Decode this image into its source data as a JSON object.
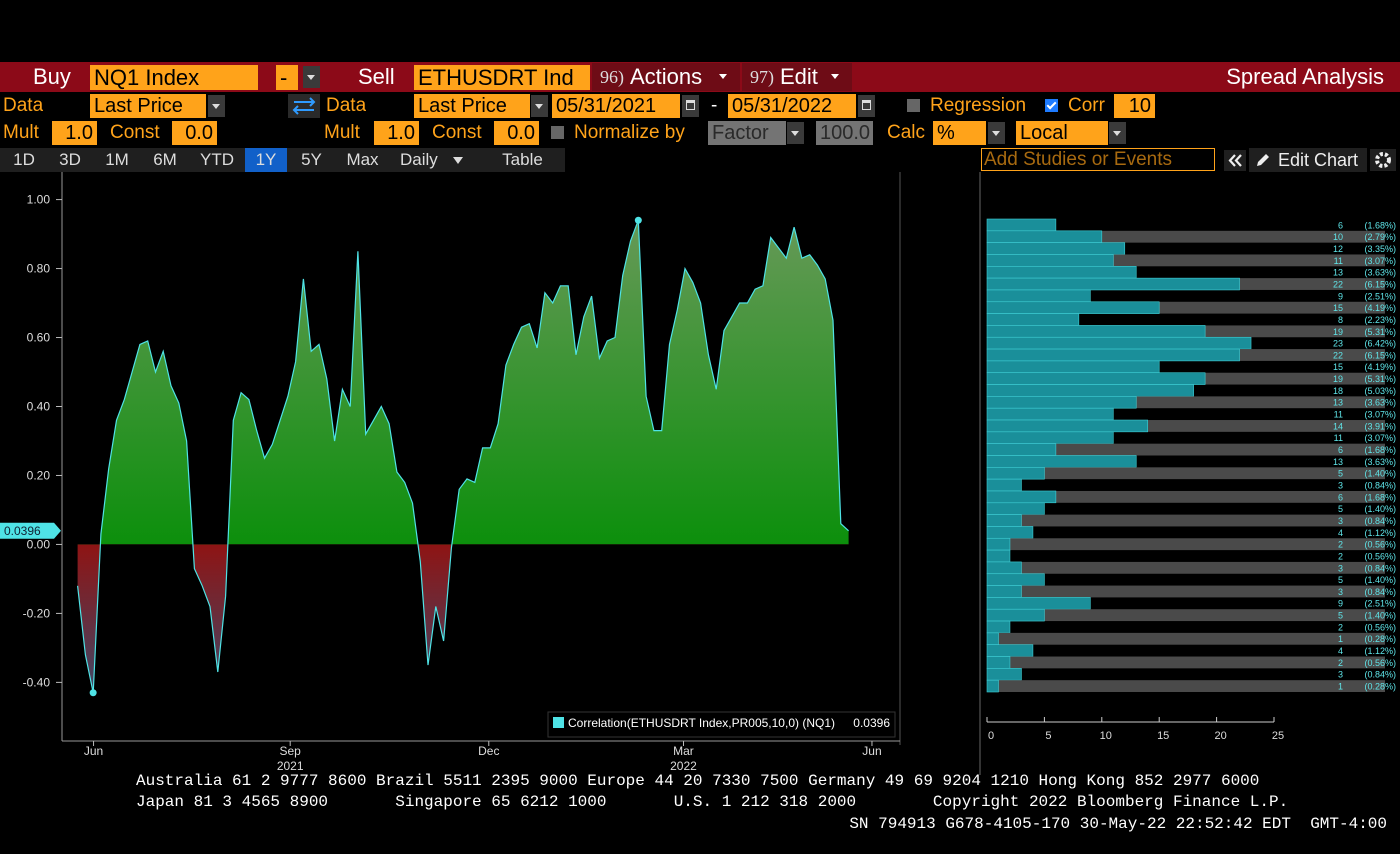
{
  "toolbar": {
    "buy_label": "Buy",
    "buy_security": "NQ1 Index",
    "buy_sign": "-",
    "sell_label": "Sell",
    "sell_security": "ETHUSDRT Ind",
    "actions_code": "96)",
    "actions": "Actions",
    "edit_code": "97)",
    "edit": "Edit",
    "function_title": "Spread Analysis"
  },
  "settings": {
    "data_label_1": "Data",
    "data_field_1": "Last Price",
    "data_label_2": "Data",
    "data_field_2": "Last Price",
    "start_date": "05/31/2021",
    "date_separator": "-",
    "end_date": "05/31/2022",
    "regression": "Regression",
    "corr": "Corr",
    "corr_window": "10",
    "mult_label_1": "Mult",
    "mult_1": "1.0",
    "const_label_1": "Const",
    "const_1": "0.0",
    "mult_label_2": "Mult",
    "mult_2": "1.0",
    "const_label_2": "Const",
    "const_2": "0.0",
    "normalize_label": "Normalize by",
    "normalize_method": "Factor",
    "normalize_value": "100.0",
    "calc_label": "Calc",
    "calc": "%",
    "currency": "Local"
  },
  "tabs": {
    "periods": [
      "1D",
      "3D",
      "1M",
      "6M",
      "YTD",
      "1Y",
      "5Y",
      "Max"
    ],
    "active": "1Y",
    "frequency": "Daily",
    "table": "Table",
    "studies_placeholder": "Add Studies or Events",
    "edit_chart": "Edit Chart"
  },
  "chart_data": [
    {
      "type": "area",
      "series": [
        {
          "name": "Correlation(ETHUSDRT Index,PR005,10,0) (NQ1)",
          "color": "#4fe3e6",
          "values": [
            -0.12,
            -0.32,
            -0.43,
            0.03,
            0.22,
            0.36,
            0.42,
            0.5,
            0.58,
            0.59,
            0.5,
            0.56,
            0.46,
            0.41,
            0.3,
            -0.07,
            -0.12,
            -0.18,
            -0.37,
            -0.15,
            0.36,
            0.44,
            0.42,
            0.33,
            0.25,
            0.29,
            0.36,
            0.43,
            0.53,
            0.77,
            0.56,
            0.58,
            0.48,
            0.3,
            0.45,
            0.4,
            0.85,
            0.32,
            0.36,
            0.4,
            0.35,
            0.21,
            0.18,
            0.12,
            -0.05,
            -0.35,
            -0.18,
            -0.28,
            -0.01,
            0.16,
            0.19,
            0.18,
            0.28,
            0.28,
            0.35,
            0.52,
            0.58,
            0.63,
            0.64,
            0.57,
            0.73,
            0.7,
            0.75,
            0.75,
            0.55,
            0.66,
            0.72,
            0.54,
            0.59,
            0.6,
            0.78,
            0.88,
            0.94,
            0.43,
            0.33,
            0.33,
            0.58,
            0.68,
            0.8,
            0.76,
            0.7,
            0.55,
            0.45,
            0.62,
            0.66,
            0.7,
            0.7,
            0.74,
            0.75,
            0.89,
            0.86,
            0.83,
            0.92,
            0.83,
            0.84,
            0.81,
            0.77,
            0.65,
            0.06,
            0.0396
          ]
        }
      ],
      "positive_color": "#0c8f0c",
      "negative_color": "#8e1414",
      "ylim": [
        -0.57,
        1.08
      ],
      "yticks": [
        {
          "value": -0.4,
          "label": "-0.40"
        },
        {
          "value": -0.2,
          "label": "-0.20"
        },
        {
          "value": 0,
          "label": "0.00"
        },
        {
          "value": 0.2,
          "label": "0.20"
        },
        {
          "value": 0.4,
          "label": "0.40"
        },
        {
          "value": 0.6,
          "label": "0.60"
        },
        {
          "value": 0.8,
          "label": "0.80"
        },
        {
          "value": 1,
          "label": "1.00"
        }
      ],
      "xlim": [
        -2,
        105.6
      ],
      "xticks": [
        {
          "value": 2.05,
          "label": "Jun"
        },
        {
          "value": 27.3,
          "label": "Sep"
        },
        {
          "value": 52.8,
          "label": "Dec"
        },
        {
          "value": 77.8,
          "label": "Mar"
        },
        {
          "value": 102,
          "label": "Jun"
        }
      ],
      "year_labels": [
        {
          "value": 27.3,
          "label": "2021"
        },
        {
          "value": 77.8,
          "label": "2022"
        }
      ]
    },
    {
      "type": "hbar_histogram",
      "color": "#1a8f9a",
      "values": [
        6,
        10,
        12,
        11,
        13,
        22,
        9,
        15,
        8,
        19,
        23,
        22,
        15,
        19,
        18,
        13,
        11,
        14,
        11,
        6,
        13,
        5,
        3,
        6,
        5,
        3,
        4,
        2,
        2,
        3,
        5,
        3,
        9,
        5,
        2,
        1,
        4,
        2,
        3,
        1
      ],
      "percents": [
        1.68,
        2.79,
        3.35,
        3.07,
        3.63,
        6.15,
        2.51,
        4.19,
        2.23,
        5.31,
        6.42,
        6.15,
        4.19,
        5.31,
        5.03,
        3.63,
        3.07,
        3.91,
        3.07,
        1.68,
        3.63,
        1.4,
        0.84,
        1.68,
        1.4,
        0.84,
        1.12,
        0.56,
        0.56,
        0.84,
        1.4,
        0.84,
        2.51,
        1.4,
        0.56,
        0.28,
        1.12,
        0.56,
        0.84,
        0.28
      ],
      "percent_labels": [
        "(1.68%)",
        "(2.79%)",
        "(3.35%)",
        "(3.07%)",
        "(3.63%)",
        "(6.15%)",
        "(2.51%)",
        "(4.19%)",
        "(2.23%)",
        "(5.31%)",
        "(6.42%)",
        "(6.15%)",
        "(4.19%)",
        "(5.31%)",
        "(5.03%)",
        "(3.63%)",
        "(3.07%)",
        "(3.91%)",
        "(3.07%)",
        "(1.68%)",
        "(3.63%)",
        "(1.40%)",
        "(0.84%)",
        "(1.68%)",
        "(1.40%)",
        "(0.84%)",
        "(1.12%)",
        "(0.56%)",
        "(0.56%)",
        "(0.84%)",
        "(1.40%)",
        "(0.84%)",
        "(2.51%)",
        "(1.40%)",
        "(0.56%)",
        "(0.28%)",
        "(1.12%)",
        "(0.56%)",
        "(0.84%)",
        "(0.28%)"
      ],
      "xlim": [
        0,
        25
      ],
      "xticks": [
        0,
        5,
        10,
        15,
        20,
        25
      ]
    }
  ],
  "footer": {
    "lines": [
      "Australia 61 2 9777 8600 Brazil 5511 2395 9000 Europe 44 20 7330 7500 Germany 49 69 9204 1210 Hong Kong 852 2977 6000",
      "Japan 81 3 4565 8900       Singapore 65 6212 1000       U.S. 1 212 318 2000        Copyright 2022 Bloomberg Finance L.P.",
      "SN 794913 G678-4105-170 30-May-22 22:52:42 EDT  GMT-4:00"
    ]
  }
}
